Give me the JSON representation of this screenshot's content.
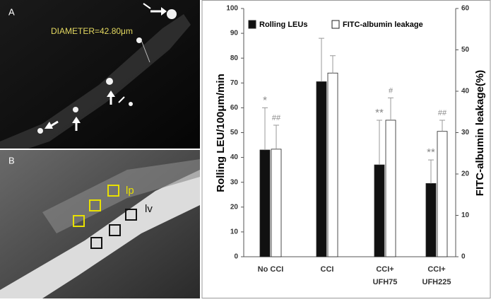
{
  "panels": {
    "a": {
      "label": "A",
      "annotation": "DIAMETER=42.80μm"
    },
    "b": {
      "label": "B",
      "labels": [
        "lp",
        "lv"
      ]
    }
  },
  "chart_data": {
    "type": "bar",
    "categories": [
      [
        "No CCI"
      ],
      [
        "CCI"
      ],
      [
        "CCI+",
        "UFH75"
      ],
      [
        "CCI+",
        "UFH225"
      ]
    ],
    "y_label": "Rolling LEU/100μm/min",
    "y2_label": "FITC-albumin leakage(%)",
    "ylim": [
      0,
      100
    ],
    "yticks": [
      0,
      10,
      20,
      30,
      40,
      50,
      60,
      70,
      80,
      90,
      100
    ],
    "y2lim": [
      0,
      60
    ],
    "y2ticks": [
      0,
      10,
      20,
      30,
      40,
      50,
      60
    ],
    "series": [
      {
        "name": "Rolling LEUs",
        "color": "#111111",
        "values": [
          43,
          70.5,
          37,
          29.5
        ],
        "errors": [
          17,
          17.5,
          18,
          9.5
        ],
        "significance": [
          "*",
          null,
          "**",
          "**"
        ]
      },
      {
        "name": "FITC-albumin leakage",
        "color": "#ffffff",
        "axis": "y2",
        "values": [
          26,
          44.4,
          33,
          30.3
        ],
        "errors": [
          5.8,
          4.2,
          5.4,
          2.7
        ],
        "significance": [
          "##",
          null,
          "#",
          "##"
        ]
      }
    ]
  }
}
